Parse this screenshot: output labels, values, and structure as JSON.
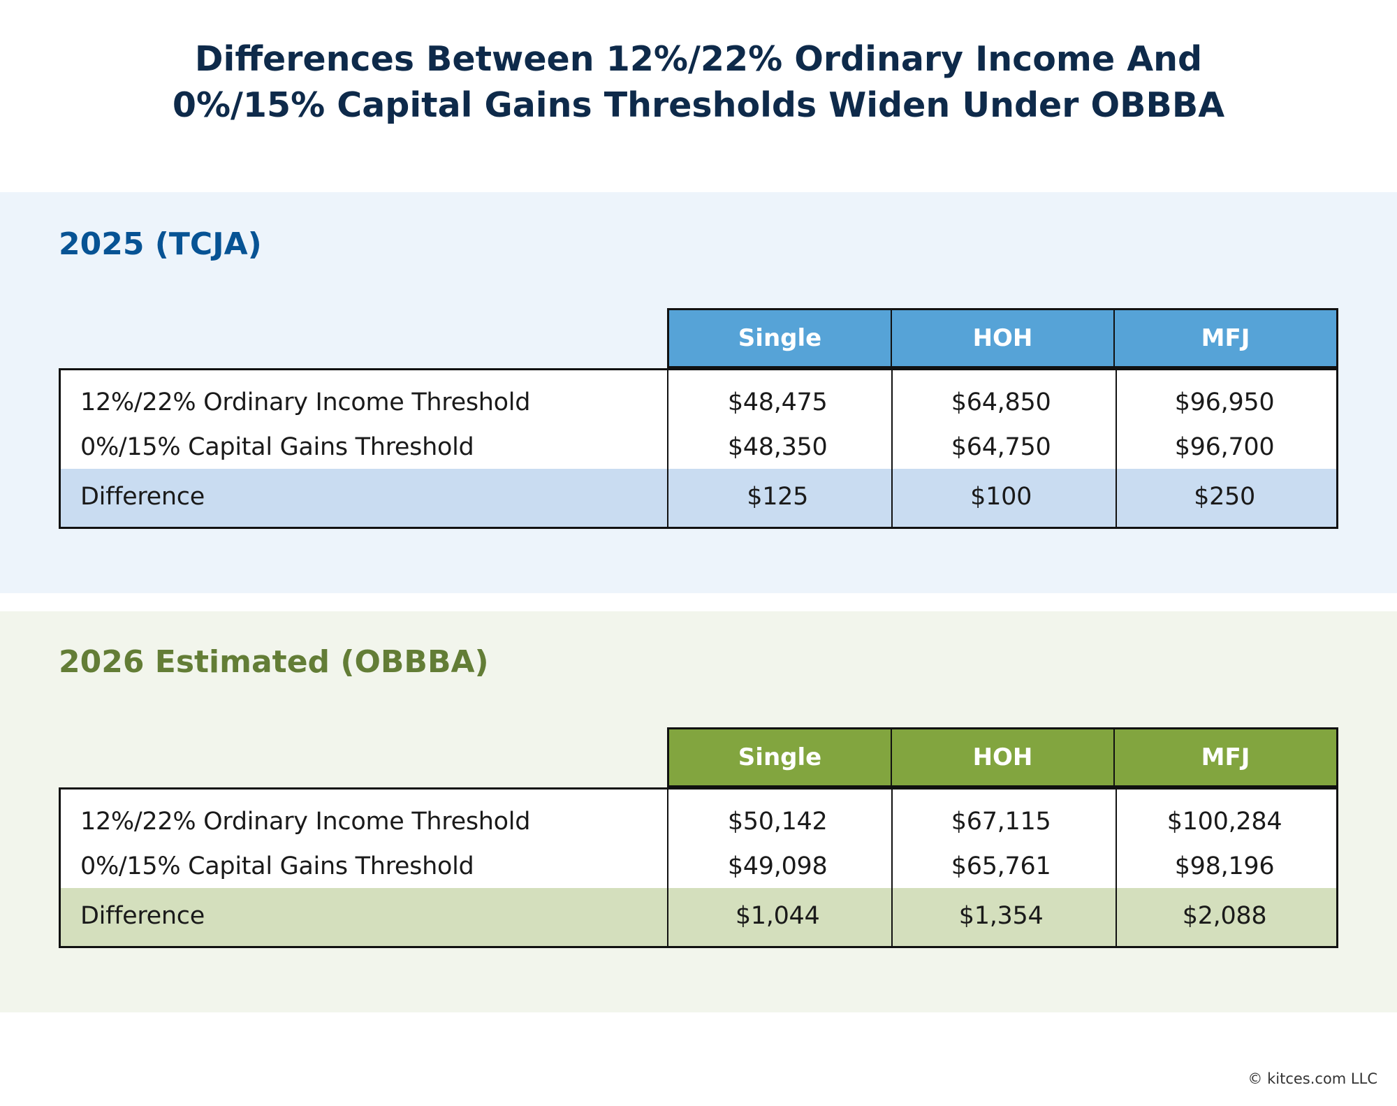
{
  "title": {
    "line1": "Differences Between 12%/22% Ordinary Income And",
    "line2": "0%/15% Capital Gains Thresholds Widen Under OBBBA"
  },
  "colors": {
    "title": "#0E2A4A",
    "tcja_heading": "#075394",
    "tcja_header_bg": "#56A3D7",
    "tcja_band_bg": "#EDF4FB",
    "tcja_diff_bg": "#C9DCF1",
    "obbba_heading": "#637D36",
    "obbba_header_bg": "#82A53F",
    "obbba_band_bg": "#F2F5EC",
    "obbba_diff_bg": "#D4DFBD"
  },
  "sections": [
    {
      "heading": "2025 (TCJA)",
      "columns": [
        "Single",
        "HOH",
        "MFJ"
      ],
      "rows": [
        {
          "label": "12%/22% Ordinary Income Threshold",
          "values": [
            "$48,475",
            "$64,850",
            "$96,950"
          ]
        },
        {
          "label": "0%/15% Capital Gains Threshold",
          "values": [
            "$48,350",
            "$64,750",
            "$96,700"
          ]
        },
        {
          "label": "Difference",
          "values": [
            "$125",
            "$100",
            "$250"
          ]
        }
      ]
    },
    {
      "heading": "2026 Estimated (OBBBA)",
      "columns": [
        "Single",
        "HOH",
        "MFJ"
      ],
      "rows": [
        {
          "label": "12%/22% Ordinary Income Threshold",
          "values": [
            "$50,142",
            "$67,115",
            "$100,284"
          ]
        },
        {
          "label": "0%/15% Capital Gains Threshold",
          "values": [
            "$49,098",
            "$65,761",
            "$98,196"
          ]
        },
        {
          "label": "Difference",
          "values": [
            "$1,044",
            "$1,354",
            "$2,088"
          ]
        }
      ]
    }
  ],
  "footer": {
    "copyright": "© kitces.com LLC"
  }
}
